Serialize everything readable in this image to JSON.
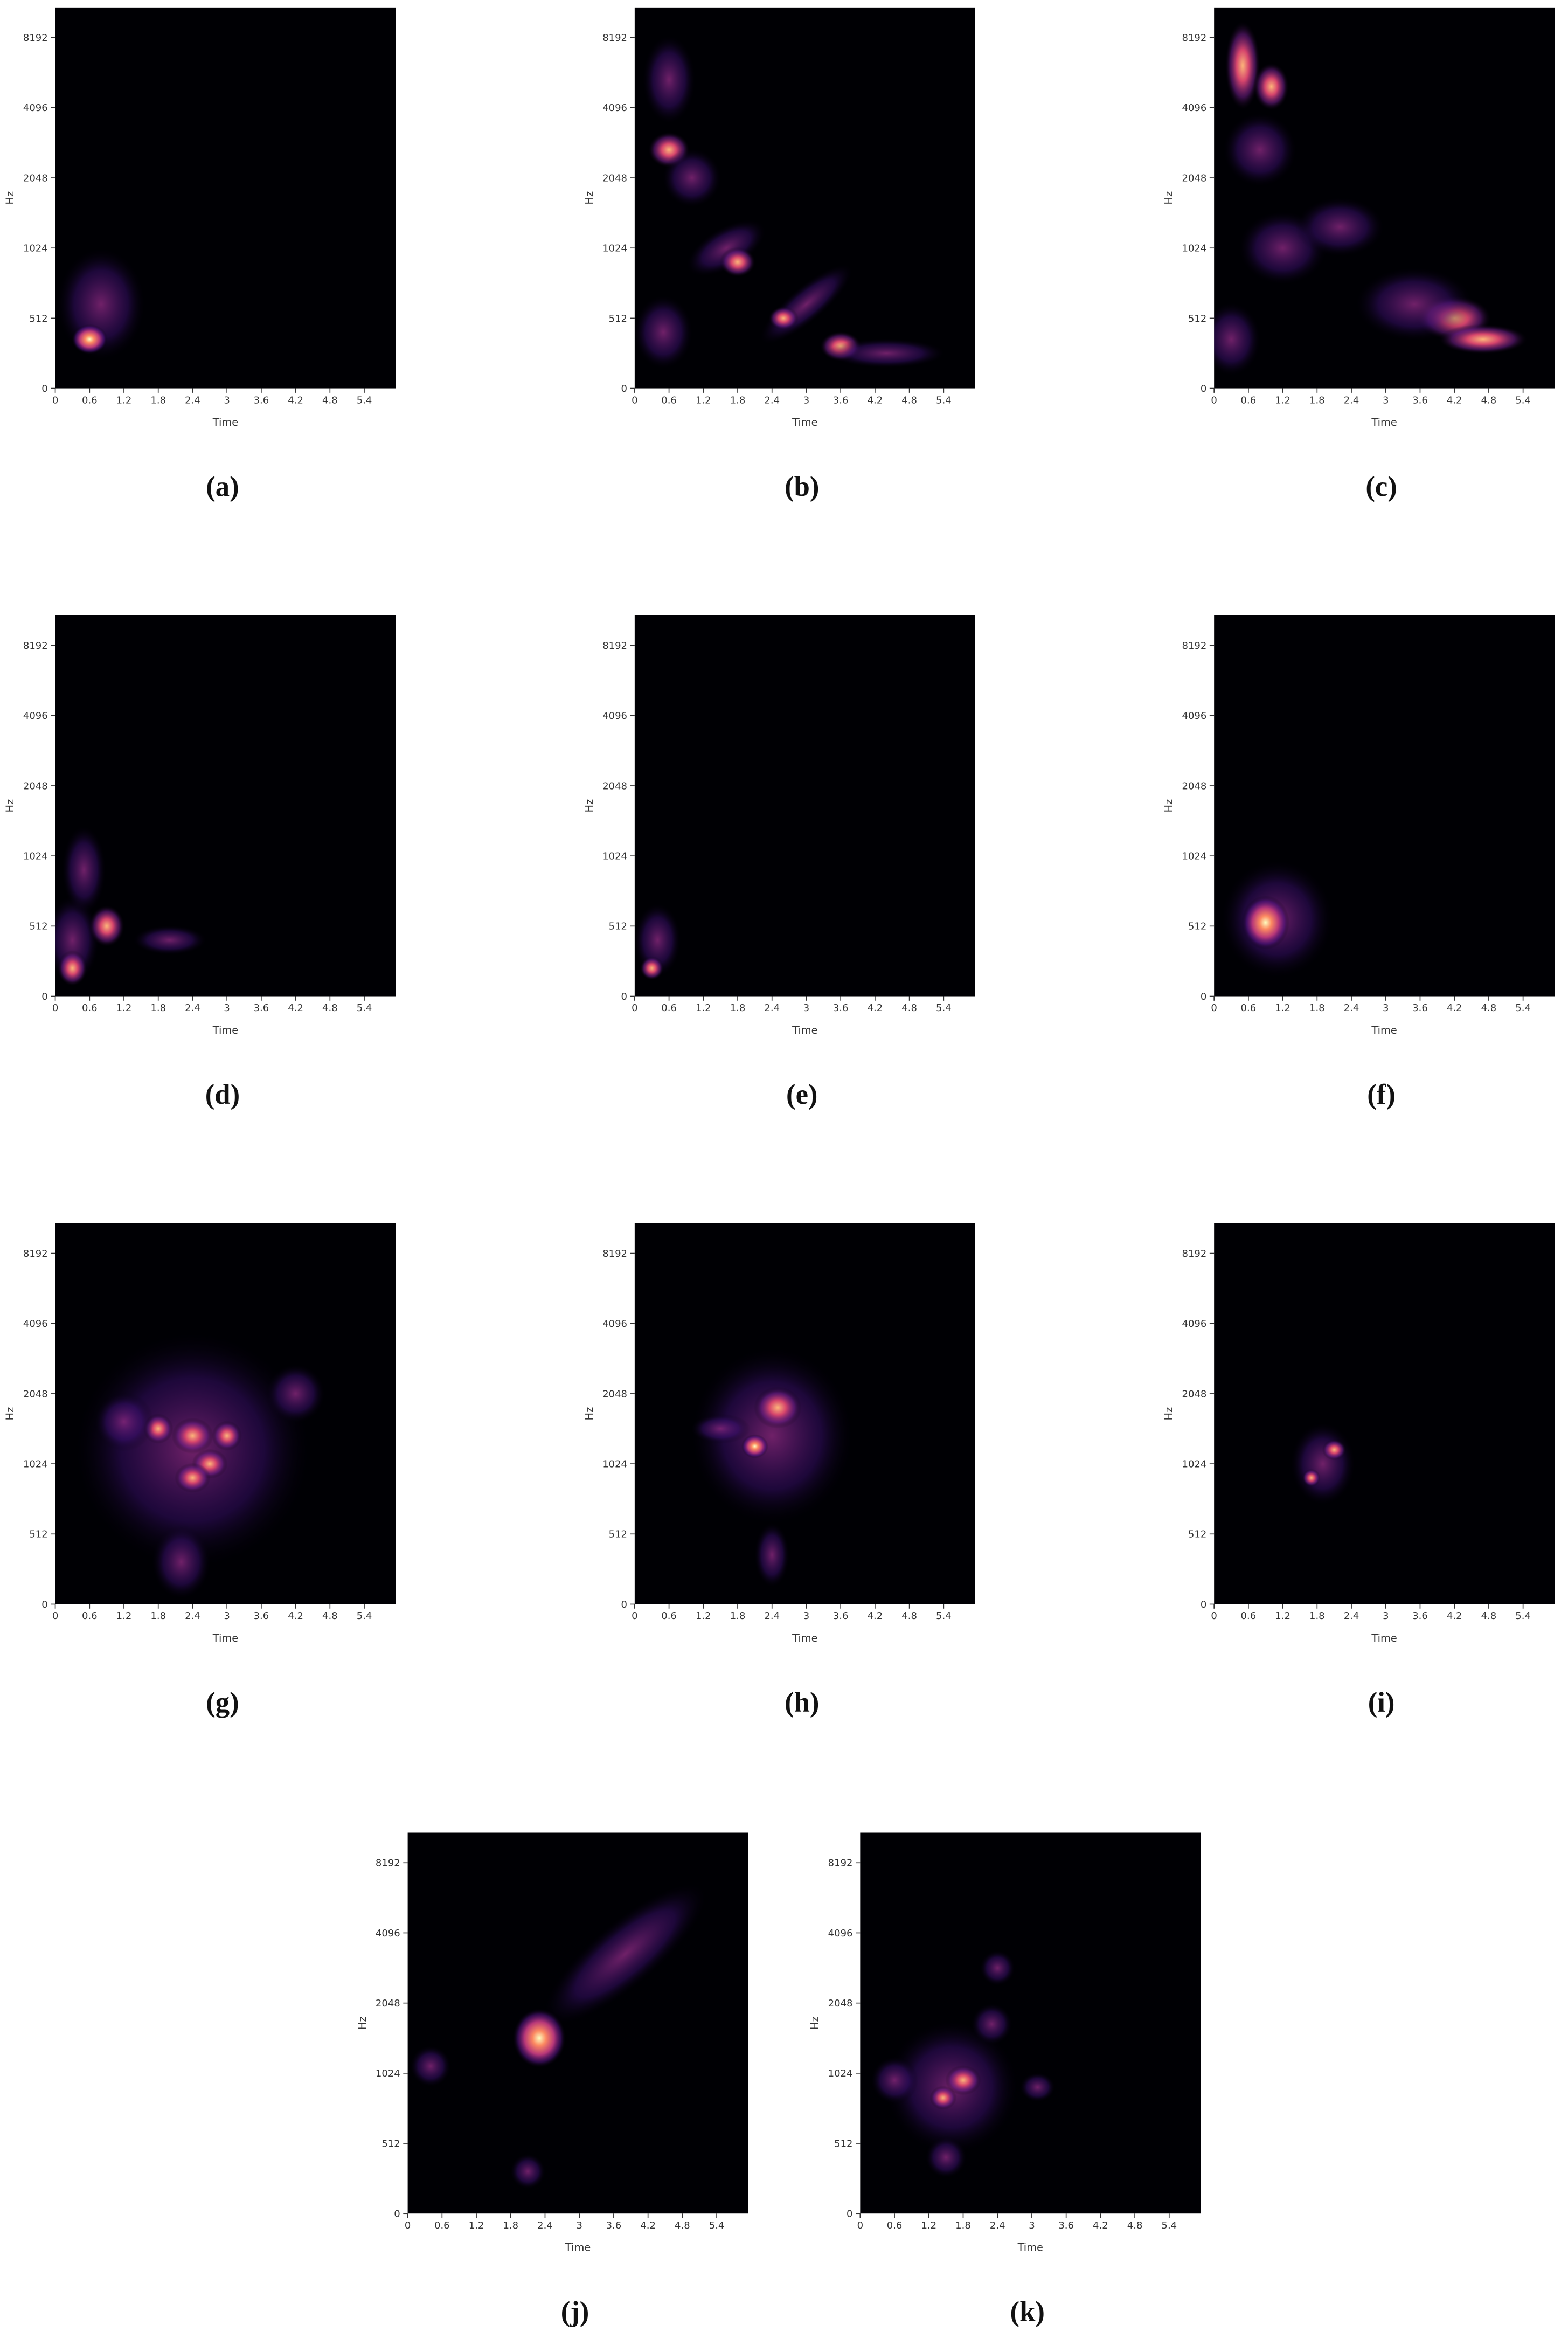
{
  "figure": {
    "axes": {
      "xlabel": "Time",
      "ylabel": "Hz",
      "xlim": [
        0,
        5.95
      ],
      "xticks": [
        0,
        0.6,
        1.2,
        1.8,
        2.4,
        3,
        3.6,
        4.2,
        4.8,
        5.4
      ],
      "ylim": [
        0,
        11025
      ],
      "yticks": [
        0,
        512,
        1024,
        2048,
        4096,
        8192
      ],
      "yscale": "symlog",
      "linthresh": 512,
      "colormap": "magma"
    },
    "panels": [
      {
        "caption": "(a)"
      },
      {
        "caption": "(b)"
      },
      {
        "caption": "(c)"
      },
      {
        "caption": "(d)"
      },
      {
        "caption": "(e)"
      },
      {
        "caption": "(f)"
      },
      {
        "caption": "(g)"
      },
      {
        "caption": "(h)"
      },
      {
        "caption": "(i)"
      },
      {
        "caption": "(j)"
      },
      {
        "caption": "(k)"
      }
    ]
  }
}
